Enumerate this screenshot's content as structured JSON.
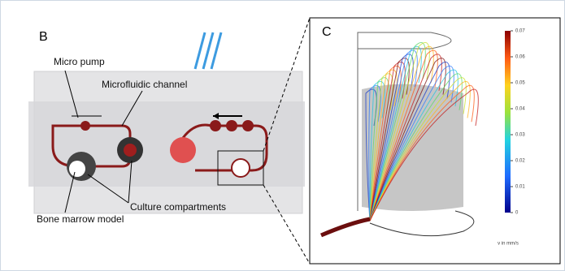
{
  "panel_b": {
    "label": "B",
    "annotations": [
      "Micro pump",
      "Microfluidic channel",
      "Culture compartments",
      "Bone marrow model"
    ]
  },
  "panel_c": {
    "label": "C",
    "colorbar": {
      "title": "v in mm/s",
      "lim": [
        0,
        0.07
      ],
      "ticks": [
        0,
        0.01,
        0.02,
        0.03,
        0.04,
        0.05,
        0.06,
        0.07
      ]
    }
  }
}
